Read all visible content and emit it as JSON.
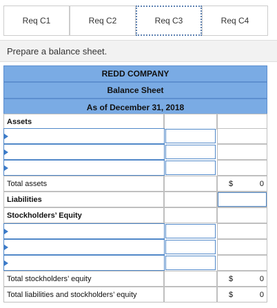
{
  "tabs": [
    "Req C1",
    "Req C2",
    "Req C3",
    "Req C4"
  ],
  "instruction": "Prepare a balance sheet.",
  "header": {
    "company": "REDD COMPANY",
    "title": "Balance Sheet",
    "date": "As of December 31, 2018"
  },
  "rows": {
    "assets": "Assets",
    "total_assets": {
      "label": "Total assets",
      "currency": "$",
      "value": 0
    },
    "liabilities": "Liabilities",
    "equity": "Stockholders’ Equity",
    "total_equity": {
      "label": "Total stockholders’ equity",
      "currency": "$",
      "value": 0
    },
    "total_liabilities_equity": {
      "label": "Total liabilities and stockholders’ equity",
      "currency": "$",
      "value": 0
    }
  }
}
